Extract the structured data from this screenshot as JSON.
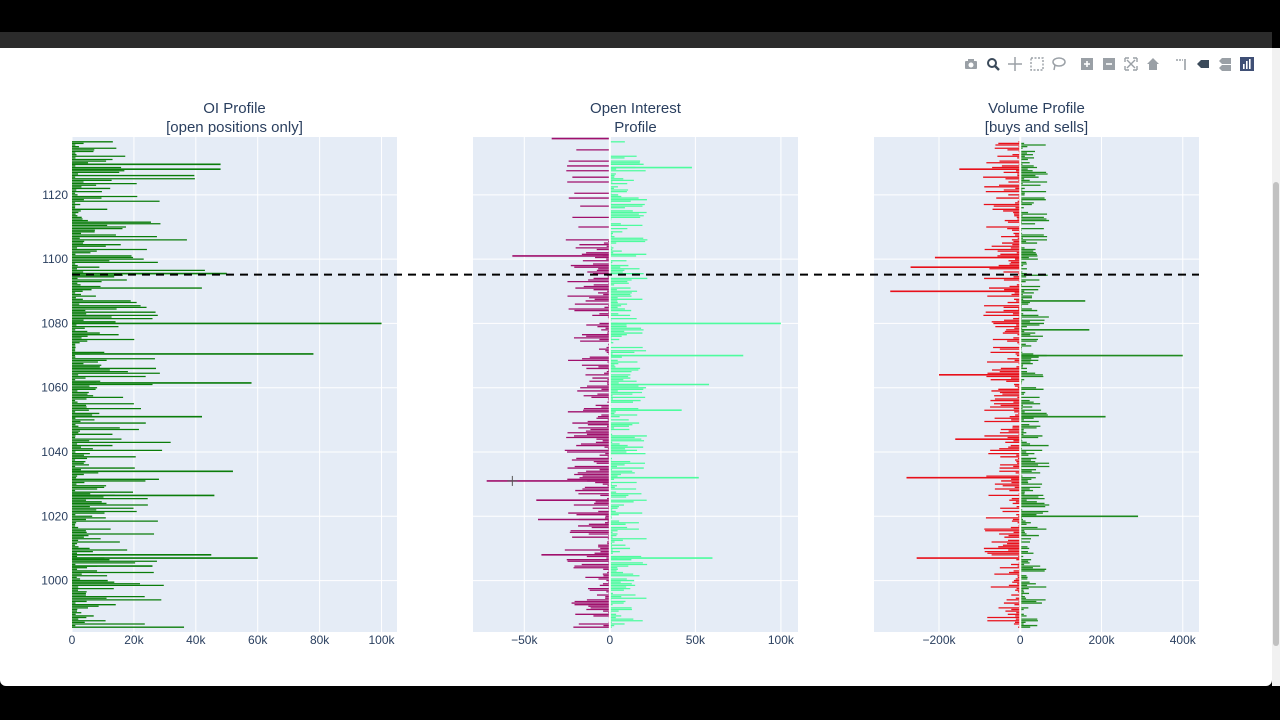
{
  "modebar": {
    "buttons": [
      "camera-icon",
      "zoom-icon",
      "pan-icon",
      "box-select-icon",
      "lasso-select-icon",
      "zoom-in-icon",
      "zoom-out-icon",
      "autoscale-icon",
      "reset-axes-icon",
      "spike-lines-icon",
      "hover-closest-icon",
      "hover-compare-icon",
      "plotly-logo-icon"
    ]
  },
  "colors": {
    "plot_bg": "#e5ecf6",
    "oi_green": "#0a7d0a",
    "oi_magenta": "#a0106c",
    "oi_mint": "#4dfc9e",
    "vol_red": "#e8101a",
    "vol_green": "#1f8a1f",
    "font": "#2a3f5f"
  },
  "chart_data": [
    {
      "type": "bar",
      "orientation": "h",
      "title": "OI Profile",
      "subtitle": "[open positions only]",
      "xlim": [
        0,
        105000
      ],
      "ylim": [
        984,
        1138
      ],
      "xticks": [
        0,
        20000,
        40000,
        60000,
        80000,
        100000
      ],
      "xticklabels": [
        "0",
        "20k",
        "40k",
        "60k",
        "80k",
        "100k"
      ],
      "yticks": [
        1000,
        1020,
        1040,
        1060,
        1080,
        1100,
        1120
      ],
      "yticklabels": [
        "1000",
        "1020",
        "1040",
        "1060",
        "1080",
        "1100",
        "1120"
      ],
      "grid": true,
      "series": [
        {
          "y": [
            1129.5,
            1128,
            1095.5,
            1080,
            1070.5,
            1061.5,
            1051,
            1034,
            1026.5,
            1008,
            1007,
            1004.5
          ],
          "x": [
            48000,
            48000,
            50000,
            100000,
            78000,
            58000,
            42000,
            52000,
            46000,
            45000,
            60000,
            26000
          ]
        }
      ]
    },
    {
      "type": "bar",
      "orientation": "h",
      "title": "Open Interest",
      "subtitle": "Profile",
      "xlim": [
        -80000,
        110000
      ],
      "xticks": [
        -50000,
        0,
        50000,
        100000
      ],
      "xticklabels": [
        "−50k",
        "0",
        "50k",
        "100k"
      ],
      "grid": true,
      "series": [
        {
          "y": [
            1128.5,
            1080,
            1070,
            1061,
            1053,
            1032,
            1007
          ],
          "x": [
            48000,
            100000,
            78000,
            58000,
            42000,
            52000,
            60000
          ]
        },
        {
          "y": [
            1137.5,
            1101,
            1031,
            1025,
            1019,
            1008
          ],
          "x": [
            -34000,
            -57000,
            -72000,
            -43000,
            -42000,
            -40000
          ]
        }
      ]
    },
    {
      "type": "bar",
      "orientation": "h",
      "title": "Volume Profile",
      "subtitle": "[buys and sells]",
      "xlim": [
        -360000,
        440000
      ],
      "xticks": [
        -200000,
        0,
        200000,
        400000
      ],
      "xticklabels": [
        "−200k",
        "0",
        "200k",
        "400k"
      ],
      "grid": true,
      "series": [
        {
          "y": [
            1070,
            1051,
            1020,
            1087,
            1078
          ],
          "x": [
            400000,
            210000,
            290000,
            160000,
            170000
          ]
        },
        {
          "y": [
            1128,
            1100.5,
            1097.5,
            1090,
            1064,
            1044,
            1032,
            1007
          ],
          "x": [
            -150000,
            -210000,
            -270000,
            -320000,
            -200000,
            -160000,
            -280000,
            -255000
          ]
        }
      ]
    }
  ],
  "reference_line": {
    "y": 1095.2,
    "style": "dash",
    "color": "#000000"
  }
}
